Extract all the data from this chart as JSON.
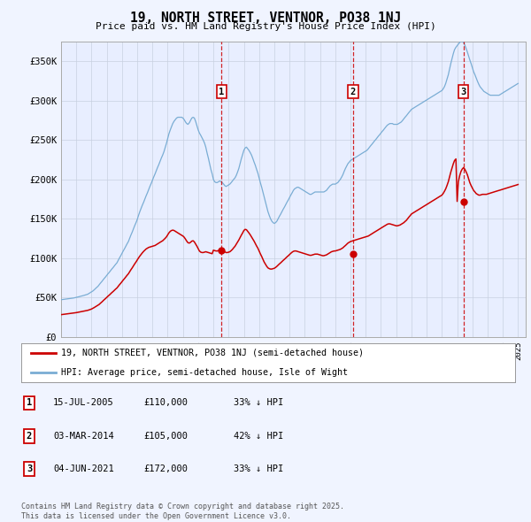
{
  "title": "19, NORTH STREET, VENTNOR, PO38 1NJ",
  "subtitle": "Price paid vs. HM Land Registry's House Price Index (HPI)",
  "legend_line1": "19, NORTH STREET, VENTNOR, PO38 1NJ (semi-detached house)",
  "legend_line2": "HPI: Average price, semi-detached house, Isle of Wight",
  "footer": "Contains HM Land Registry data © Crown copyright and database right 2025.\nThis data is licensed under the Open Government Licence v3.0.",
  "sale_color": "#cc0000",
  "hpi_color": "#7aadd4",
  "background_color": "#f0f4ff",
  "plot_bg_color": "#e8eeff",
  "grid_color": "#c8d0e0",
  "ylim": [
    0,
    375000
  ],
  "yticks": [
    0,
    50000,
    100000,
    150000,
    200000,
    250000,
    300000,
    350000
  ],
  "ytick_labels": [
    "£0",
    "£50K",
    "£100K",
    "£150K",
    "£200K",
    "£250K",
    "£300K",
    "£350K"
  ],
  "xlim_start": 1995.0,
  "xlim_end": 2025.5,
  "sales": [
    {
      "date": 2005.54,
      "price": 110000,
      "label": "1"
    },
    {
      "date": 2014.17,
      "price": 105000,
      "label": "2"
    },
    {
      "date": 2021.42,
      "price": 172000,
      "label": "3"
    }
  ],
  "sale_annotations": [
    {
      "label": "1",
      "date": "15-JUL-2005",
      "price": "£110,000",
      "pct": "33% ↓ HPI"
    },
    {
      "label": "2",
      "date": "03-MAR-2014",
      "price": "£105,000",
      "pct": "42% ↓ HPI"
    },
    {
      "label": "3",
      "date": "04-JUN-2021",
      "price": "£172,000",
      "pct": "33% ↓ HPI"
    }
  ],
  "hpi_x": [
    1995.0,
    1995.08,
    1995.17,
    1995.25,
    1995.33,
    1995.42,
    1995.5,
    1995.58,
    1995.67,
    1995.75,
    1995.83,
    1995.92,
    1996.0,
    1996.08,
    1996.17,
    1996.25,
    1996.33,
    1996.42,
    1996.5,
    1996.58,
    1996.67,
    1996.75,
    1996.83,
    1996.92,
    1997.0,
    1997.08,
    1997.17,
    1997.25,
    1997.33,
    1997.42,
    1997.5,
    1997.58,
    1997.67,
    1997.75,
    1997.83,
    1997.92,
    1998.0,
    1998.08,
    1998.17,
    1998.25,
    1998.33,
    1998.42,
    1998.5,
    1998.58,
    1998.67,
    1998.75,
    1998.83,
    1998.92,
    1999.0,
    1999.08,
    1999.17,
    1999.25,
    1999.33,
    1999.42,
    1999.5,
    1999.58,
    1999.67,
    1999.75,
    1999.83,
    1999.92,
    2000.0,
    2000.08,
    2000.17,
    2000.25,
    2000.33,
    2000.42,
    2000.5,
    2000.58,
    2000.67,
    2000.75,
    2000.83,
    2000.92,
    2001.0,
    2001.08,
    2001.17,
    2001.25,
    2001.33,
    2001.42,
    2001.5,
    2001.58,
    2001.67,
    2001.75,
    2001.83,
    2001.92,
    2002.0,
    2002.08,
    2002.17,
    2002.25,
    2002.33,
    2002.42,
    2002.5,
    2002.58,
    2002.67,
    2002.75,
    2002.83,
    2002.92,
    2003.0,
    2003.08,
    2003.17,
    2003.25,
    2003.33,
    2003.42,
    2003.5,
    2003.58,
    2003.67,
    2003.75,
    2003.83,
    2003.92,
    2004.0,
    2004.08,
    2004.17,
    2004.25,
    2004.33,
    2004.42,
    2004.5,
    2004.58,
    2004.67,
    2004.75,
    2004.83,
    2004.92,
    2005.0,
    2005.08,
    2005.17,
    2005.25,
    2005.33,
    2005.42,
    2005.5,
    2005.58,
    2005.67,
    2005.75,
    2005.83,
    2005.92,
    2006.0,
    2006.08,
    2006.17,
    2006.25,
    2006.33,
    2006.42,
    2006.5,
    2006.58,
    2006.67,
    2006.75,
    2006.83,
    2006.92,
    2007.0,
    2007.08,
    2007.17,
    2007.25,
    2007.33,
    2007.42,
    2007.5,
    2007.58,
    2007.67,
    2007.75,
    2007.83,
    2007.92,
    2008.0,
    2008.08,
    2008.17,
    2008.25,
    2008.33,
    2008.42,
    2008.5,
    2008.58,
    2008.67,
    2008.75,
    2008.83,
    2008.92,
    2009.0,
    2009.08,
    2009.17,
    2009.25,
    2009.33,
    2009.42,
    2009.5,
    2009.58,
    2009.67,
    2009.75,
    2009.83,
    2009.92,
    2010.0,
    2010.08,
    2010.17,
    2010.25,
    2010.33,
    2010.42,
    2010.5,
    2010.58,
    2010.67,
    2010.75,
    2010.83,
    2010.92,
    2011.0,
    2011.08,
    2011.17,
    2011.25,
    2011.33,
    2011.42,
    2011.5,
    2011.58,
    2011.67,
    2011.75,
    2011.83,
    2011.92,
    2012.0,
    2012.08,
    2012.17,
    2012.25,
    2012.33,
    2012.42,
    2012.5,
    2012.58,
    2012.67,
    2012.75,
    2012.83,
    2012.92,
    2013.0,
    2013.08,
    2013.17,
    2013.25,
    2013.33,
    2013.42,
    2013.5,
    2013.58,
    2013.67,
    2013.75,
    2013.83,
    2013.92,
    2014.0,
    2014.08,
    2014.17,
    2014.25,
    2014.33,
    2014.42,
    2014.5,
    2014.58,
    2014.67,
    2014.75,
    2014.83,
    2014.92,
    2015.0,
    2015.08,
    2015.17,
    2015.25,
    2015.33,
    2015.42,
    2015.5,
    2015.58,
    2015.67,
    2015.75,
    2015.83,
    2015.92,
    2016.0,
    2016.08,
    2016.17,
    2016.25,
    2016.33,
    2016.42,
    2016.5,
    2016.58,
    2016.67,
    2016.75,
    2016.83,
    2016.92,
    2017.0,
    2017.08,
    2017.17,
    2017.25,
    2017.33,
    2017.42,
    2017.5,
    2017.58,
    2017.67,
    2017.75,
    2017.83,
    2017.92,
    2018.0,
    2018.08,
    2018.17,
    2018.25,
    2018.33,
    2018.42,
    2018.5,
    2018.58,
    2018.67,
    2018.75,
    2018.83,
    2018.92,
    2019.0,
    2019.08,
    2019.17,
    2019.25,
    2019.33,
    2019.42,
    2019.5,
    2019.58,
    2019.67,
    2019.75,
    2019.83,
    2019.92,
    2020.0,
    2020.08,
    2020.17,
    2020.25,
    2020.33,
    2020.42,
    2020.5,
    2020.58,
    2020.67,
    2020.75,
    2020.83,
    2020.92,
    2021.0,
    2021.08,
    2021.17,
    2021.25,
    2021.33,
    2021.42,
    2021.5,
    2021.58,
    2021.67,
    2021.75,
    2021.83,
    2021.92,
    2022.0,
    2022.08,
    2022.17,
    2022.25,
    2022.33,
    2022.42,
    2022.5,
    2022.58,
    2022.67,
    2022.75,
    2022.83,
    2022.92,
    2023.0,
    2023.08,
    2023.17,
    2023.25,
    2023.33,
    2023.42,
    2023.5,
    2023.58,
    2023.67,
    2023.75,
    2023.83,
    2023.92,
    2024.0,
    2024.08,
    2024.17,
    2024.25,
    2024.33,
    2024.42,
    2024.5,
    2024.58,
    2024.67,
    2024.75,
    2024.83,
    2024.92,
    2025.0
  ],
  "hpi_y": [
    47000,
    47200,
    47400,
    47600,
    47800,
    48000,
    48200,
    48400,
    48600,
    48800,
    49200,
    49600,
    50000,
    50400,
    50800,
    51200,
    51600,
    52000,
    52500,
    53000,
    53500,
    54000,
    55000,
    56000,
    57000,
    58000,
    59500,
    61000,
    62500,
    64000,
    66000,
    68000,
    70000,
    72000,
    74000,
    76000,
    78000,
    80000,
    82000,
    84000,
    86000,
    88000,
    90000,
    92000,
    94000,
    97000,
    100000,
    103000,
    106000,
    109000,
    112000,
    115000,
    118000,
    121000,
    125000,
    129000,
    133000,
    137000,
    141000,
    145000,
    149000,
    154000,
    159000,
    163000,
    167000,
    171000,
    175000,
    179000,
    183000,
    187000,
    191000,
    195000,
    199000,
    203000,
    207000,
    211000,
    215000,
    219000,
    223000,
    227000,
    231000,
    235000,
    240000,
    246000,
    252000,
    258000,
    263000,
    267000,
    271000,
    274000,
    276000,
    278000,
    279000,
    279000,
    279000,
    279000,
    278000,
    276000,
    273000,
    271000,
    270000,
    272000,
    275000,
    278000,
    279000,
    278000,
    274000,
    268000,
    263000,
    259000,
    256000,
    253000,
    250000,
    246000,
    241000,
    234000,
    227000,
    220000,
    213000,
    207000,
    200000,
    197000,
    196000,
    196000,
    197000,
    198000,
    197000,
    196000,
    194000,
    192000,
    191000,
    192000,
    193000,
    194000,
    196000,
    198000,
    200000,
    202000,
    205000,
    209000,
    214000,
    220000,
    226000,
    232000,
    237000,
    240000,
    241000,
    239000,
    237000,
    234000,
    231000,
    227000,
    222000,
    218000,
    213000,
    208000,
    202000,
    196000,
    190000,
    184000,
    178000,
    171000,
    165000,
    159000,
    154000,
    150000,
    147000,
    145000,
    144000,
    145000,
    147000,
    150000,
    153000,
    156000,
    159000,
    162000,
    165000,
    168000,
    171000,
    174000,
    177000,
    180000,
    183000,
    186000,
    188000,
    189000,
    190000,
    190000,
    189000,
    188000,
    187000,
    186000,
    185000,
    184000,
    183000,
    182000,
    181000,
    181000,
    182000,
    183000,
    184000,
    184000,
    184000,
    184000,
    184000,
    184000,
    184000,
    184000,
    185000,
    186000,
    188000,
    190000,
    192000,
    193000,
    194000,
    194000,
    194000,
    195000,
    196000,
    198000,
    200000,
    203000,
    206000,
    210000,
    214000,
    217000,
    220000,
    222000,
    224000,
    225000,
    226000,
    227000,
    228000,
    229000,
    230000,
    231000,
    232000,
    233000,
    234000,
    235000,
    236000,
    237000,
    239000,
    241000,
    243000,
    245000,
    247000,
    249000,
    251000,
    253000,
    255000,
    257000,
    259000,
    261000,
    263000,
    265000,
    267000,
    269000,
    270000,
    271000,
    271000,
    271000,
    270000,
    270000,
    270000,
    270000,
    271000,
    272000,
    273000,
    275000,
    277000,
    279000,
    281000,
    283000,
    285000,
    287000,
    289000,
    290000,
    291000,
    292000,
    293000,
    294000,
    295000,
    296000,
    297000,
    298000,
    299000,
    300000,
    301000,
    302000,
    303000,
    304000,
    305000,
    306000,
    307000,
    308000,
    309000,
    310000,
    311000,
    312000,
    313000,
    315000,
    318000,
    322000,
    327000,
    333000,
    340000,
    347000,
    354000,
    360000,
    365000,
    368000,
    370000,
    372000,
    374000,
    376000,
    376000,
    374000,
    371000,
    367000,
    362000,
    357000,
    352000,
    347000,
    342000,
    337000,
    333000,
    329000,
    325000,
    321000,
    318000,
    316000,
    314000,
    312000,
    311000,
    310000,
    309000,
    308000,
    307000,
    307000,
    307000,
    307000,
    307000,
    307000,
    307000,
    307000,
    308000,
    309000,
    310000,
    311000,
    312000,
    313000,
    314000,
    315000,
    316000,
    317000,
    318000,
    319000,
    320000,
    321000,
    322000
  ],
  "red_y": [
    28000,
    28200,
    28400,
    28600,
    28800,
    29000,
    29200,
    29400,
    29600,
    29800,
    30000,
    30300,
    30600,
    30900,
    31200,
    31500,
    31800,
    32100,
    32400,
    32700,
    33000,
    33500,
    34000,
    34600,
    35200,
    36000,
    37000,
    38000,
    39000,
    40000,
    41000,
    42500,
    44000,
    45500,
    47000,
    48500,
    50000,
    51500,
    53000,
    54500,
    56000,
    57500,
    59000,
    60500,
    62000,
    64000,
    66000,
    68000,
    70000,
    72000,
    74000,
    76000,
    78000,
    80000,
    82500,
    85000,
    87500,
    90000,
    92500,
    95000,
    97500,
    100000,
    102500,
    104500,
    106500,
    108500,
    110000,
    111500,
    112500,
    113500,
    114000,
    114500,
    115000,
    115500,
    116000,
    117000,
    118000,
    119000,
    120000,
    121000,
    122000,
    123500,
    125000,
    127000,
    129500,
    132000,
    134000,
    135000,
    135500,
    135000,
    134000,
    133000,
    132000,
    131000,
    130000,
    129000,
    128000,
    126500,
    124000,
    121500,
    119500,
    119000,
    120000,
    121500,
    122000,
    120500,
    118000,
    115000,
    112000,
    109000,
    107500,
    107000,
    107000,
    107500,
    108000,
    107500,
    107000,
    106500,
    106000,
    105500,
    110000,
    109500,
    109000,
    109000,
    109500,
    110000,
    110000,
    109500,
    109000,
    108000,
    107000,
    107000,
    107500,
    108000,
    109500,
    111000,
    113000,
    115000,
    117500,
    120000,
    123000,
    126000,
    129000,
    132000,
    135000,
    136500,
    136000,
    134000,
    132000,
    129500,
    127000,
    124500,
    121500,
    118500,
    115500,
    112500,
    109000,
    105500,
    102000,
    98500,
    95000,
    92000,
    89500,
    87500,
    86500,
    86000,
    86000,
    86500,
    87000,
    88000,
    89500,
    91000,
    92500,
    94000,
    95500,
    97000,
    98500,
    100000,
    101500,
    103000,
    104500,
    106000,
    107500,
    108500,
    109000,
    109000,
    108500,
    108000,
    107500,
    107000,
    106500,
    106000,
    105500,
    105000,
    104500,
    104000,
    103500,
    103500,
    104000,
    104500,
    105000,
    105000,
    105000,
    104500,
    104000,
    103500,
    103000,
    103000,
    103500,
    104000,
    105000,
    106000,
    107000,
    108000,
    108500,
    109000,
    109000,
    109500,
    110000,
    110500,
    111000,
    112000,
    113000,
    114500,
    116000,
    117500,
    119000,
    120000,
    121000,
    121500,
    122000,
    122500,
    123000,
    123500,
    124000,
    124500,
    125000,
    125500,
    126000,
    126500,
    127000,
    127500,
    128000,
    129000,
    130000,
    131000,
    132000,
    133000,
    134000,
    135000,
    136000,
    137000,
    138000,
    139000,
    140000,
    141000,
    142000,
    143000,
    143500,
    143500,
    143000,
    142500,
    142000,
    141500,
    141000,
    141000,
    141500,
    142000,
    143000,
    144000,
    145000,
    146500,
    148000,
    150000,
    152000,
    154000,
    156000,
    157000,
    158000,
    159000,
    160000,
    161000,
    162000,
    163000,
    164000,
    165000,
    166000,
    167000,
    168000,
    169000,
    170000,
    171000,
    172000,
    173000,
    174000,
    175000,
    176000,
    177000,
    178000,
    179000,
    180000,
    182000,
    185000,
    188000,
    192000,
    197000,
    203000,
    209000,
    215000,
    220000,
    224000,
    226000,
    172000,
    197000,
    205000,
    210000,
    213000,
    215000,
    213000,
    210000,
    206000,
    201000,
    196000,
    192000,
    189000,
    186000,
    184000,
    182000,
    181000,
    180000,
    180000,
    180500,
    181000,
    181000,
    181000,
    181000,
    181500,
    182000,
    182500,
    183000,
    183500,
    184000,
    184500,
    185000,
    185500,
    186000,
    186500,
    187000,
    187500,
    188000,
    188500,
    189000,
    189500,
    190000,
    190500,
    191000,
    191500,
    192000,
    192500,
    193000,
    193500
  ]
}
